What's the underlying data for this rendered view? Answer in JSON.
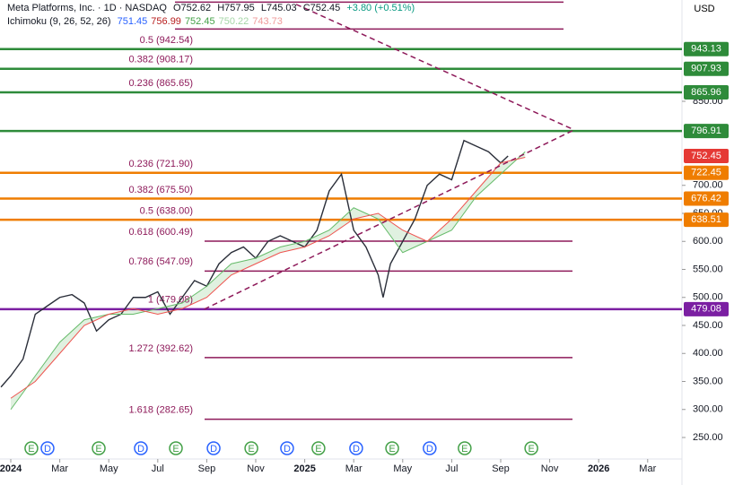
{
  "chart_data": {
    "type": "candlestick-overview",
    "header": {
      "symbol": "Meta Platforms, Inc. · 1D · NASDAQ",
      "open": "O752.62",
      "high": "H757.95",
      "low": "L745.03",
      "close": "C752.45",
      "change": "+3.80 (+0.51%)",
      "indicator": "Ichimoku (9, 26, 52, 26)",
      "indicator_values": [
        "751.45",
        "756.99",
        "752.45",
        "750.22",
        "743.73"
      ],
      "indicator_colors": [
        "#2962ff",
        "#b71c1c",
        "#43a047",
        "#a5d6a7",
        "#ef9a9a"
      ]
    },
    "currency": "USD",
    "xlim": [
      -0.44,
      27.4
    ],
    "ylim": [
      211.6,
      1030.8
    ],
    "xticks": [
      {
        "value": 0,
        "label": "2024"
      },
      {
        "value": 2,
        "label": "Mar"
      },
      {
        "value": 4,
        "label": "May"
      },
      {
        "value": 6,
        "label": "Jul"
      },
      {
        "value": 8,
        "label": "Sep"
      },
      {
        "value": 10,
        "label": "Nov"
      },
      {
        "value": 12,
        "label": "2025"
      },
      {
        "value": 14,
        "label": "Mar"
      },
      {
        "value": 16,
        "label": "May"
      },
      {
        "value": 18,
        "label": "Jul"
      },
      {
        "value": 20,
        "label": "Sep"
      },
      {
        "value": 22,
        "label": "Nov"
      },
      {
        "value": 24,
        "label": "2026"
      },
      {
        "value": 26,
        "label": "Mar"
      }
    ],
    "yticks": [
      {
        "value": 250,
        "label": "250.00"
      },
      {
        "value": 300,
        "label": "300.00"
      },
      {
        "value": 350,
        "label": "350.00"
      },
      {
        "value": 400,
        "label": "400.00"
      },
      {
        "value": 450,
        "label": "450.00"
      },
      {
        "value": 500,
        "label": "500.00"
      },
      {
        "value": 550,
        "label": "550.00"
      },
      {
        "value": 600,
        "label": "600.00"
      },
      {
        "value": 650,
        "label": "650.00"
      },
      {
        "value": 700,
        "label": "700.00"
      },
      {
        "value": 850,
        "label": "850.00"
      }
    ],
    "series": [
      {
        "name": "Price",
        "color": "#2a2e39",
        "x": [
          -0.4,
          0,
          0.5,
          1,
          1.5,
          2,
          2.5,
          3,
          3.5,
          4,
          4.5,
          5,
          5.5,
          6,
          6.5,
          7,
          7.5,
          8,
          8.5,
          9,
          9.5,
          10,
          10.5,
          11,
          11.5,
          12,
          12.5,
          13,
          13.5,
          14,
          14.5,
          15,
          15.2,
          15.5,
          16,
          16.5,
          17,
          17.5,
          18,
          18.5,
          19,
          19.5,
          20,
          20.3
        ],
        "values": [
          340,
          360,
          390,
          470,
          485,
          500,
          505,
          490,
          440,
          460,
          470,
          500,
          500,
          510,
          470,
          500,
          530,
          520,
          560,
          580,
          590,
          570,
          600,
          610,
          600,
          590,
          620,
          690,
          720,
          620,
          590,
          540,
          500,
          560,
          600,
          640,
          700,
          720,
          710,
          780,
          770,
          760,
          740,
          752.45
        ]
      },
      {
        "name": "Leading Span A",
        "color": "#66bb6a",
        "x": [
          0,
          1,
          2,
          3,
          4,
          5,
          6,
          7,
          8,
          9,
          10,
          11,
          12,
          13,
          14,
          15,
          16,
          17,
          18,
          19,
          20,
          21
        ],
        "values": [
          300,
          360,
          420,
          460,
          470,
          470,
          480,
          490,
          520,
          560,
          570,
          590,
          600,
          620,
          660,
          640,
          580,
          600,
          620,
          680,
          720,
          760
        ]
      },
      {
        "name": "Leading Span B",
        "color": "#ef5350",
        "x": [
          0,
          1,
          2,
          3,
          4,
          5,
          6,
          7,
          8,
          9,
          10,
          11,
          12,
          13,
          14,
          15,
          16,
          17,
          18,
          19,
          20,
          21
        ],
        "values": [
          320,
          350,
          400,
          450,
          470,
          480,
          470,
          480,
          500,
          540,
          560,
          580,
          590,
          610,
          640,
          650,
          620,
          600,
          640,
          690,
          740,
          750
        ]
      }
    ],
    "price_lines": [
      {
        "price": 943.13,
        "color": "#2e8b3a"
      },
      {
        "price": 907.93,
        "color": "#2e8b3a"
      },
      {
        "price": 865.96,
        "color": "#2e8b3a"
      },
      {
        "price": 796.91,
        "color": "#2e8b3a"
      },
      {
        "price": 722.45,
        "color": "#ef7d00"
      },
      {
        "price": 676.42,
        "color": "#ef7d00"
      },
      {
        "price": 638.51,
        "color": "#ef7d00"
      },
      {
        "price": 479.08,
        "color": "#7b1fa2"
      }
    ],
    "last_price": {
      "price": 752.45,
      "color": "#e53935"
    },
    "fib_levels": [
      {
        "text": "0.5 (942.54)",
        "value": 942.54,
        "short": false
      },
      {
        "text": "0.382 (908.17)",
        "value": 908.17,
        "short": false
      },
      {
        "text": "0.236 (865.65)",
        "value": 865.65,
        "short": false
      },
      {
        "text": "0.236 (721.90)",
        "value": 721.9,
        "short": false
      },
      {
        "text": "0.382 (675.50)",
        "value": 675.5,
        "short": false
      },
      {
        "text": "0.5 (638.00)",
        "value": 638.0,
        "short": false
      },
      {
        "text": "0.618 (600.49)",
        "value": 600.49,
        "short": true
      },
      {
        "text": "0.786 (547.09)",
        "value": 547.09,
        "short": true
      },
      {
        "text": "1 (479.08)",
        "value": 479.08,
        "short": true
      },
      {
        "text": "1.272 (392.62)",
        "value": 392.62,
        "short": true
      },
      {
        "text": "1.618 (282.65)",
        "value": 282.65,
        "short": true
      }
    ],
    "fib_color": "#8e1a5a",
    "top_lines": [
      1027,
      979
    ],
    "trendlines": [
      {
        "x": [
          7.9,
          23.0
        ],
        "y": [
          479,
          799
        ]
      },
      {
        "x": [
          11.65,
          23.0
        ],
        "y": [
          1023,
          799
        ]
      }
    ],
    "events": [
      {
        "letter": "E",
        "t": 0.84
      },
      {
        "letter": "D",
        "t": 1.5
      },
      {
        "letter": "E",
        "t": 3.59
      },
      {
        "letter": "D",
        "t": 5.31
      },
      {
        "letter": "E",
        "t": 6.74
      },
      {
        "letter": "D",
        "t": 8.28
      },
      {
        "letter": "E",
        "t": 9.82
      },
      {
        "letter": "D",
        "t": 11.28
      },
      {
        "letter": "E",
        "t": 12.56
      },
      {
        "letter": "D",
        "t": 14.1
      },
      {
        "letter": "E",
        "t": 15.57
      },
      {
        "letter": "D",
        "t": 17.1
      },
      {
        "letter": "E",
        "t": 18.53
      },
      {
        "letter": "E",
        "t": 21.25
      }
    ]
  }
}
